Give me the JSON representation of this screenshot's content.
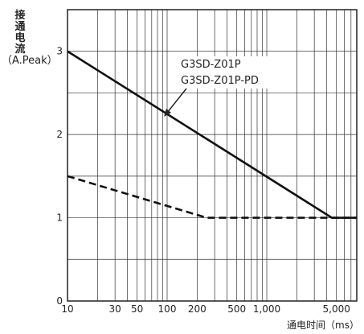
{
  "chart_data": {
    "type": "line",
    "x_scale": "log",
    "y_scale": "linear",
    "xlim": [
      10,
      8000
    ],
    "ylim": [
      0,
      3.5
    ],
    "grid": true,
    "ylabel_chars": [
      "接",
      "通",
      "电",
      "流"
    ],
    "ylabel_unit": "（A.Peak）",
    "xlabel": "通电时间（ms）",
    "x_ticks": [
      {
        "value": 10,
        "label": "10"
      },
      {
        "value": 30,
        "label": "30"
      },
      {
        "value": 50,
        "label": "50"
      },
      {
        "value": 100,
        "label": "100"
      },
      {
        "value": 200,
        "label": "200"
      },
      {
        "value": 500,
        "label": "500"
      },
      {
        "value": 1000,
        "label": "1,000"
      },
      {
        "value": 5000,
        "label": "5,000"
      }
    ],
    "y_ticks": [
      {
        "value": 0,
        "label": "0"
      },
      {
        "value": 1,
        "label": "1"
      },
      {
        "value": 2,
        "label": "2"
      },
      {
        "value": 3,
        "label": "3"
      }
    ],
    "series": [
      {
        "style": "solid",
        "points": [
          [
            10,
            3.0
          ],
          [
            4500,
            1.0
          ],
          [
            8000,
            1.0
          ]
        ]
      },
      {
        "style": "dashed",
        "points": [
          [
            10,
            1.5
          ],
          [
            250,
            1.0
          ],
          [
            8000,
            1.0
          ]
        ]
      }
    ],
    "annotations": [
      {
        "text": "G3SD-Z01P"
      },
      {
        "text": "G3SD-Z01P-PD"
      }
    ]
  }
}
